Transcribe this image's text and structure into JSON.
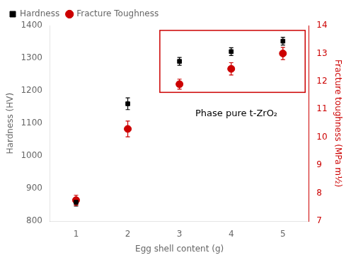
{
  "chart_data": {
    "type": "scatter",
    "x_label": "Egg shell content (g)",
    "y_label": "Hardness (HV)",
    "y2_label": "Fracture toughness (MPa m½)",
    "x": [
      1,
      2,
      3,
      4,
      5
    ],
    "series": [
      {
        "name": "Hardness",
        "color": "#000000",
        "marker": "square",
        "values": [
          858,
          1160,
          1290,
          1320,
          1352
        ],
        "errors": [
          12,
          18,
          12,
          12,
          12
        ]
      },
      {
        "name": "Fracture Toughness",
        "color": "#cc0000",
        "marker": "circle",
        "axis": "y2",
        "values": [
          7.75,
          10.3,
          11.9,
          12.45,
          13.0
        ],
        "errors": [
          0.18,
          0.28,
          0.18,
          0.22,
          0.22
        ]
      }
    ],
    "xlim": [
      0.5,
      5.5
    ],
    "xticks": [
      1,
      2,
      3,
      4,
      5
    ],
    "ylim": [
      800,
      1400
    ],
    "yticks": [
      800,
      900,
      1000,
      1100,
      1200,
      1300,
      1400
    ],
    "y2lim": [
      7,
      14
    ],
    "y2ticks": [
      7,
      8,
      9,
      10,
      11,
      12,
      13,
      14
    ],
    "grid": false,
    "legend": "upper left",
    "annotations": [
      {
        "text": "Phase pure t-ZrO₂",
        "x": 4.1,
        "y": 1130
      }
    ],
    "box": {
      "x": [
        2.62,
        5.43
      ],
      "y": [
        1195,
        1385
      ],
      "color": "#cc0000"
    }
  }
}
